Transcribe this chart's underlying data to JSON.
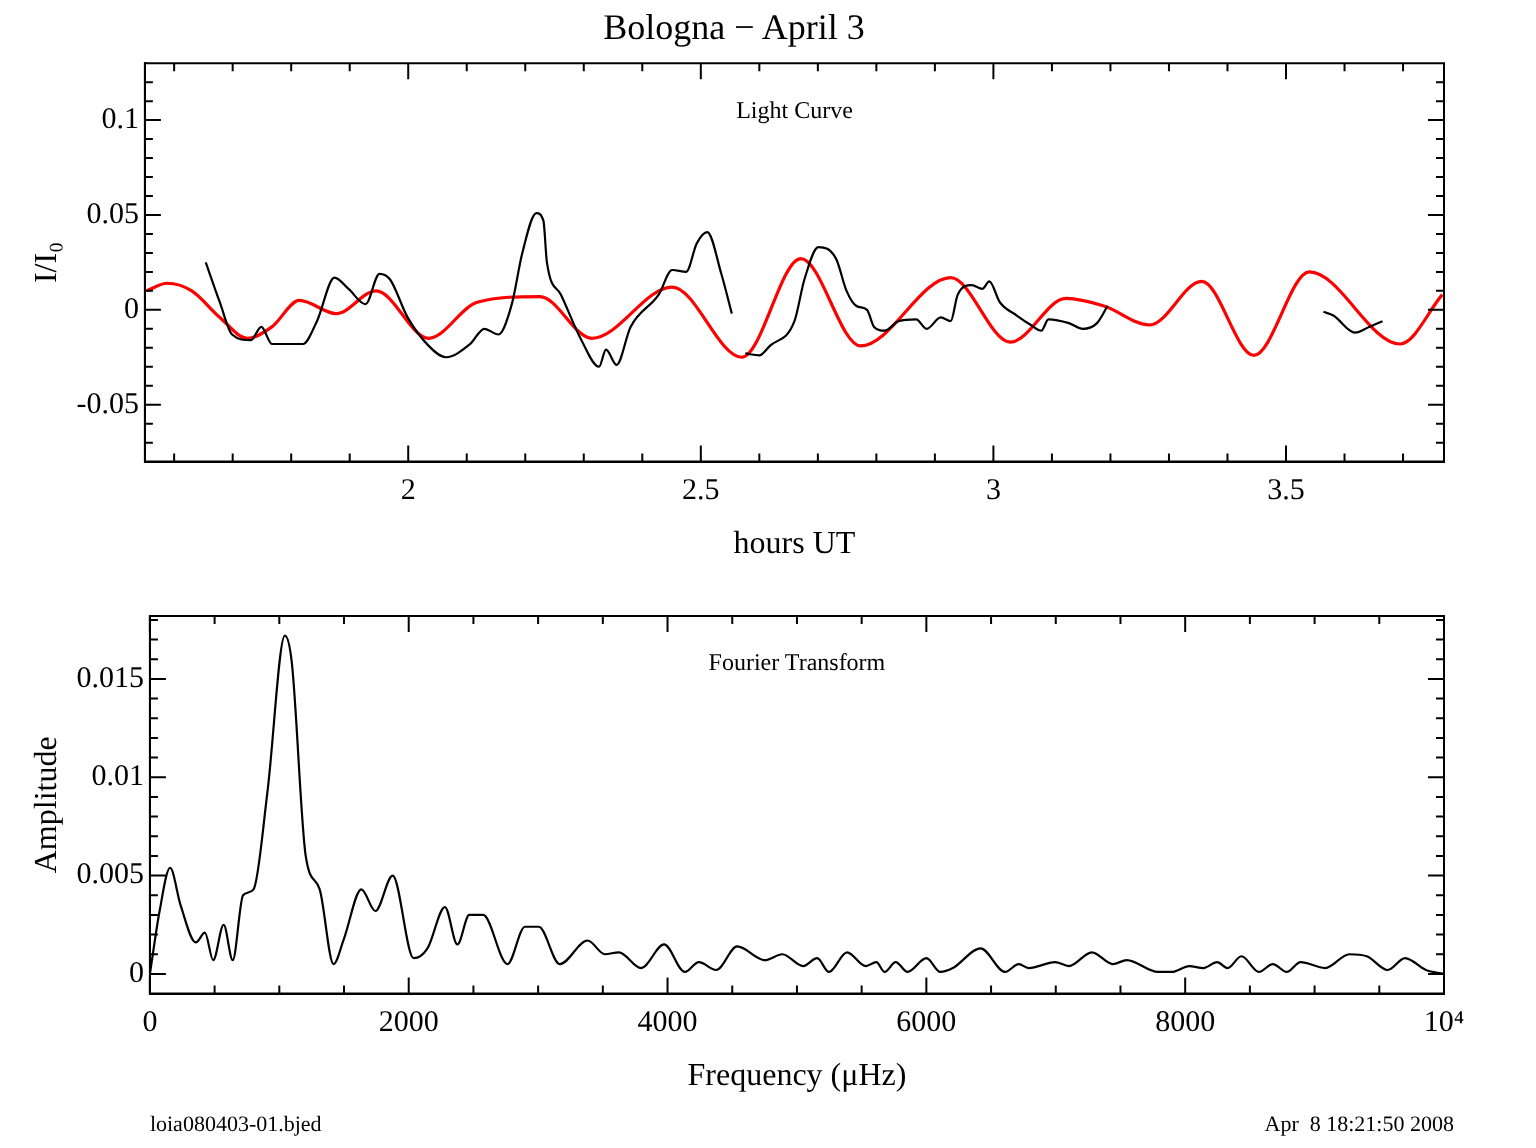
{
  "chart_data": [
    {
      "type": "line",
      "title": "Bologna − April 3",
      "xlabel": "hours UT",
      "ylabel": "I/I₀",
      "annotations": [
        "Light Curve"
      ],
      "xlim": [
        1.55,
        3.77
      ],
      "ylim": [
        -0.08,
        0.13
      ],
      "xticks": [
        {
          "value": 1.6,
          "label": null
        },
        {
          "value": 1.7,
          "label": null
        },
        {
          "value": 1.8,
          "label": null
        },
        {
          "value": 1.9,
          "label": null
        },
        2,
        {
          "value": 2.1,
          "label": null
        },
        {
          "value": 2.2,
          "label": null
        },
        {
          "value": 2.3,
          "label": null
        },
        {
          "value": 2.4,
          "label": null
        },
        2.5,
        {
          "value": 2.6,
          "label": null
        },
        {
          "value": 2.7,
          "label": null
        },
        {
          "value": 2.8,
          "label": null
        },
        {
          "value": 2.9,
          "label": null
        },
        3,
        {
          "value": 3.1,
          "label": null
        },
        {
          "value": 3.2,
          "label": null
        },
        {
          "value": 3.3,
          "label": null
        },
        {
          "value": 3.4,
          "label": null
        },
        3.5,
        {
          "value": 3.6,
          "label": null
        },
        {
          "value": 3.7,
          "label": null
        }
      ],
      "yticks": [
        {
          "value": -0.07,
          "label": null
        },
        {
          "value": -0.06,
          "label": null
        },
        -0.05,
        {
          "value": -0.04,
          "label": null
        },
        {
          "value": -0.03,
          "label": null
        },
        {
          "value": -0.02,
          "label": null
        },
        {
          "value": -0.01,
          "label": null
        },
        0,
        {
          "value": 0.01,
          "label": null
        },
        {
          "value": 0.02,
          "label": null
        },
        {
          "value": 0.03,
          "label": null
        },
        {
          "value": 0.04,
          "label": null
        },
        0.05,
        {
          "value": 0.06,
          "label": null
        },
        {
          "value": 0.07,
          "label": null
        },
        {
          "value": 0.08,
          "label": null
        },
        {
          "value": 0.09,
          "label": null
        },
        0.1,
        {
          "value": 0.11,
          "label": null
        },
        {
          "value": 0.12,
          "label": null
        }
      ],
      "marker": "none",
      "line_style": "solid",
      "legend": false,
      "series": [
        {
          "color": "#000000",
          "x": [
            1.654,
            1.678,
            1.699,
            1.731,
            1.749,
            1.767,
            1.82,
            1.844,
            1.874,
            1.898,
            1.927,
            1.951,
            1.969,
            1.999,
            2.035,
            2.064,
            2.106,
            2.13,
            2.154,
            2.177,
            2.195,
            2.219,
            2.231,
            2.237,
            2.261,
            2.296,
            2.326,
            2.338,
            2.356,
            2.38,
            2.428,
            2.451,
            2.475,
            2.493,
            2.511,
            2.535,
            2.553,
            2.565,
            2.576,
            2.6,
            2.618,
            2.66,
            2.677,
            2.701,
            2.731,
            2.749,
            2.766,
            2.784,
            2.796,
            2.814,
            2.838,
            2.868,
            2.886,
            2.91,
            2.927,
            2.939,
            2.963,
            2.981,
            2.993,
            3.011,
            3.04,
            3.064,
            3.082,
            3.094,
            3.129,
            3.153,
            3.177,
            3.195,
            3.4,
            3.564,
            3.581,
            3.618,
            3.642,
            3.665
          ],
          "values": [
            0.025,
            0.004,
            -0.013,
            -0.016,
            -0.009,
            -0.018,
            -0.018,
            -0.006,
            0.017,
            0.011,
            0.003,
            0.019,
            0.016,
            -0.004,
            -0.019,
            -0.025,
            -0.018,
            -0.01,
            -0.013,
            0.003,
            0.03,
            0.051,
            0.047,
            0.025,
            0.008,
            -0.016,
            -0.03,
            -0.021,
            -0.029,
            -0.009,
            0.008,
            0.021,
            0.02,
            0.035,
            0.041,
            0.019,
            -0.002,
            null,
            -0.023,
            -0.024,
            -0.019,
            -0.006,
            0.016,
            0.033,
            0.027,
            0.01,
            0.002,
            0,
            -0.009,
            -0.011,
            -0.006,
            -0.005,
            -0.01,
            -0.004,
            -0.006,
            0.008,
            0.013,
            0.011,
            0.015,
            0.004,
            -0.003,
            -0.008,
            -0.011,
            -0.005,
            -0.007,
            -0.01,
            -0.007,
            0.002,
            null,
            -0.001,
            -0.003,
            -0.012,
            -0.009,
            -0.006
          ]
        },
        {
          "color": "#ff0000",
          "x": [
            1.553,
            1.588,
            1.63,
            1.678,
            1.725,
            1.767,
            1.814,
            1.877,
            1.945,
            2.035,
            2.118,
            2.225,
            2.314,
            2.451,
            2.57,
            2.671,
            2.773,
            2.927,
            3.029,
            3.124,
            3.189,
            3.267,
            3.356,
            3.445,
            3.54,
            3.695,
            3.767
          ],
          "values": [
            0.01,
            0.014,
            0.01,
            -0.004,
            -0.015,
            -0.009,
            0.005,
            -0.002,
            0.01,
            -0.015,
            0.004,
            0.007,
            -0.015,
            0.012,
            -0.025,
            0.027,
            -0.019,
            0.017,
            -0.017,
            0.006,
            0.002,
            -0.008,
            0.015,
            -0.024,
            0.02,
            -0.018,
            0.008
          ]
        }
      ]
    },
    {
      "type": "line",
      "xlabel": "Frequency (μHz)",
      "ylabel": "Amplitude",
      "annotations": [
        "Fourier Transform",
        "loia080403-01.bjed",
        "Apr  8 18:21:50 2008"
      ],
      "xlim": [
        0,
        10000
      ],
      "ylim": [
        -0.001,
        0.0182
      ],
      "xticks": [
        0,
        {
          "value": 500,
          "label": null
        },
        {
          "value": 1000,
          "label": null
        },
        {
          "value": 1500,
          "label": null
        },
        2000,
        {
          "value": 2500,
          "label": null
        },
        {
          "value": 3000,
          "label": null
        },
        {
          "value": 3500,
          "label": null
        },
        4000,
        {
          "value": 4500,
          "label": null
        },
        {
          "value": 5000,
          "label": null
        },
        {
          "value": 5500,
          "label": null
        },
        6000,
        {
          "value": 6500,
          "label": null
        },
        {
          "value": 7000,
          "label": null
        },
        {
          "value": 7500,
          "label": null
        },
        8000,
        {
          "value": 8500,
          "label": null
        },
        {
          "value": 9000,
          "label": null
        },
        {
          "value": 9500,
          "label": null
        },
        {
          "value": 10000,
          "label": "10⁴"
        }
      ],
      "yticks": [
        0,
        {
          "value": 0.001,
          "label": null
        },
        {
          "value": 0.002,
          "label": null
        },
        {
          "value": 0.003,
          "label": null
        },
        {
          "value": 0.004,
          "label": null
        },
        0.005,
        {
          "value": 0.006,
          "label": null
        },
        {
          "value": 0.007,
          "label": null
        },
        {
          "value": 0.008,
          "label": null
        },
        {
          "value": 0.009,
          "label": null
        },
        0.01,
        {
          "value": 0.011,
          "label": null
        },
        {
          "value": 0.012,
          "label": null
        },
        {
          "value": 0.013,
          "label": null
        },
        {
          "value": 0.014,
          "label": null
        },
        0.015,
        {
          "value": 0.016,
          "label": null
        },
        {
          "value": 0.017,
          "label": null
        },
        {
          "value": 0.018,
          "label": null
        }
      ],
      "marker": "none",
      "line_style": "solid",
      "legend": false,
      "series": [
        {
          "color": "#000000",
          "x": [
            0,
            75,
            156,
            237,
            355,
            425,
            489,
            570,
            640,
            720,
            801,
            909,
            1043,
            1097,
            1204,
            1312,
            1419,
            1500,
            1634,
            1742,
            1876,
            2038,
            2145,
            2280,
            2376,
            2468,
            2575,
            2763,
            2898,
            3005,
            3167,
            3382,
            3516,
            3624,
            3796,
            3973,
            4134,
            4242,
            4376,
            4538,
            4753,
            4887,
            5048,
            5156,
            5247,
            5387,
            5532,
            5613,
            5677,
            5763,
            5855,
            6000,
            6108,
            6205,
            6419,
            6608,
            6715,
            6790,
            6995,
            7102,
            7279,
            7441,
            7548,
            7790,
            7898,
            8032,
            8140,
            8247,
            8328,
            8435,
            8570,
            8677,
            8785,
            8892,
            9081,
            9269,
            9403,
            9565,
            9699,
            9860,
            9995
          ],
          "values": [
            0,
            0.0032,
            0.0054,
            0.0035,
            0.0016,
            0.0021,
            0.0007,
            0.0025,
            0.0007,
            0.004,
            0.0043,
            0.0093,
            0.0172,
            0.0158,
            0.006,
            0.0043,
            0.0005,
            0.0018,
            0.0043,
            0.0032,
            0.005,
            0.0008,
            0.0013,
            0.0034,
            0.0015,
            0.003,
            0.003,
            0.0005,
            0.0024,
            0.0024,
            0.0005,
            0.0017,
            0.001,
            0.0011,
            0.0003,
            0.0015,
            0.0001,
            0.0006,
            0.0002,
            0.0014,
            0.0007,
            0.001,
            0.0004,
            0.0008,
            0.0001,
            0.0011,
            0.0004,
            0.0006,
            0.0001,
            0.0006,
            0.0001,
            0.0008,
            0.0001,
            0.0003,
            0.0013,
            0.0001,
            0.0005,
            0.0003,
            0.0006,
            0.0004,
            0.0011,
            0.0005,
            0.0007,
            0.0001,
            0.0001,
            0.0004,
            0.0003,
            0.0006,
            0.0003,
            0.0009,
            0.0001,
            0.0005,
            0.0001,
            0.0006,
            0.0003,
            0.001,
            0.0009,
            0.0002,
            0.0008,
            0.0002,
            0
          ]
        }
      ]
    }
  ]
}
